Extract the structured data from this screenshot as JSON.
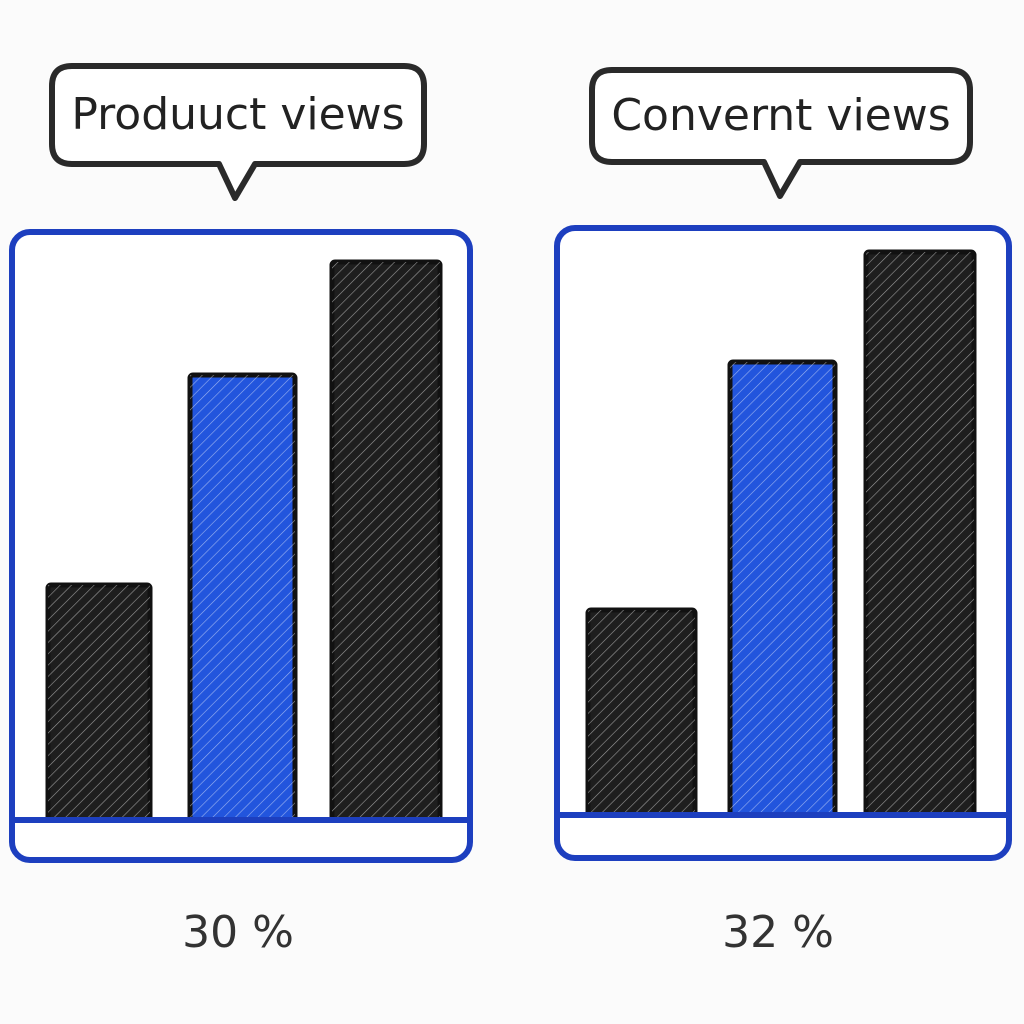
{
  "chart_data": [
    {
      "type": "bar",
      "title": "Produuct views",
      "categories": [
        null,
        null,
        null
      ],
      "values": [
        235,
        445,
        558
      ],
      "colors": [
        "#1e1e1e",
        "#2255dd",
        "#1e1e1e"
      ],
      "caption": "30 %"
    },
    {
      "type": "bar",
      "title": "Convernt views",
      "categories": [
        null,
        null,
        null
      ],
      "values": [
        205,
        453,
        563
      ],
      "colors": [
        "#1e1e1e",
        "#2255dd",
        "#1e1e1e"
      ],
      "caption": "32 %"
    }
  ]
}
